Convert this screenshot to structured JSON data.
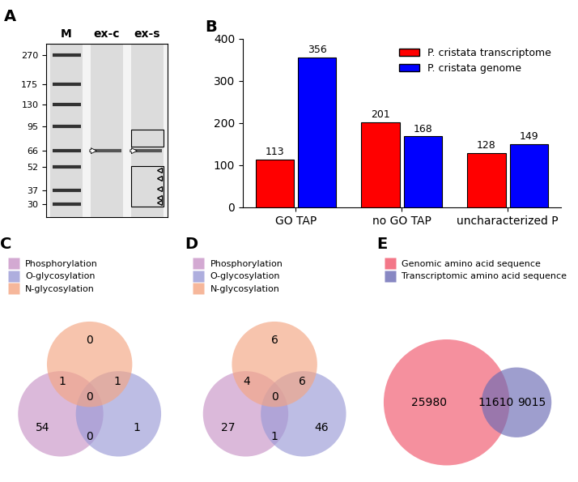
{
  "chart_data": [
    {
      "type": "gel",
      "title": "A",
      "categories": [
        "M",
        "ex-c",
        "ex-s"
      ],
      "log": "y",
      "ylim": [
        25,
        320
      ],
      "yticks": [
        270,
        175,
        130,
        95,
        66,
        52,
        37,
        30
      ],
      "bands": [
        {
          "lane": "ex-c",
          "kda": 66
        },
        {
          "lane": "ex-s",
          "kda": 66
        }
      ],
      "boxes": [
        {
          "lane": "ex-s",
          "kda": [
            70,
            90
          ]
        },
        {
          "lane": "ex-s",
          "kda": [
            29,
            53
          ]
        }
      ],
      "arrowheads": [
        {
          "lane": "ex-s",
          "kda": [
            50,
            44,
            38,
            33,
            31
          ]
        }
      ]
    },
    {
      "type": "bar",
      "title": "B",
      "categories": [
        "GO TAP",
        "no GO TAP",
        "uncharacterized P"
      ],
      "series": [
        {
          "name": "P. cristata transcriptome",
          "color": "#ff0000",
          "values": [
            113,
            201,
            128
          ]
        },
        {
          "name": "P. cristata genome",
          "color": "#0000ff",
          "values": [
            356,
            168,
            149
          ]
        }
      ],
      "ylim": [
        0,
        400
      ],
      "yticks": [
        0,
        100,
        200,
        300,
        400
      ],
      "data_labels": true,
      "legend": "upper right"
    },
    {
      "type": "venn",
      "title": "C",
      "sets": [
        {
          "name": "Phosphorylation",
          "color": "#c994c7"
        },
        {
          "name": "O-glycosylation",
          "color": "#9a9ad6"
        },
        {
          "name": "N-glycosylation",
          "color": "#f4a582"
        }
      ],
      "regions": [
        {
          "sets": [
            "Phosphorylation"
          ],
          "value": 54
        },
        {
          "sets": [
            "O-glycosylation"
          ],
          "value": 1
        },
        {
          "sets": [
            "N-glycosylation"
          ],
          "value": 0
        },
        {
          "sets": [
            "Phosphorylation",
            "N-glycosylation"
          ],
          "value": 1
        },
        {
          "sets": [
            "O-glycosylation",
            "N-glycosylation"
          ],
          "value": 1
        },
        {
          "sets": [
            "Phosphorylation",
            "O-glycosylation"
          ],
          "value": 0
        },
        {
          "sets": [
            "Phosphorylation",
            "O-glycosylation",
            "N-glycosylation"
          ],
          "value": 0
        }
      ],
      "legend": "upper left"
    },
    {
      "type": "venn",
      "title": "D",
      "sets": [
        {
          "name": "Phosphorylation",
          "color": "#c994c7"
        },
        {
          "name": "O-glycosylation",
          "color": "#9a9ad6"
        },
        {
          "name": "N-glycosylation",
          "color": "#f4a582"
        }
      ],
      "regions": [
        {
          "sets": [
            "Phosphorylation"
          ],
          "value": 27
        },
        {
          "sets": [
            "O-glycosylation"
          ],
          "value": 46
        },
        {
          "sets": [
            "N-glycosylation"
          ],
          "value": 6
        },
        {
          "sets": [
            "Phosphorylation",
            "N-glycosylation"
          ],
          "value": 4
        },
        {
          "sets": [
            "O-glycosylation",
            "N-glycosylation"
          ],
          "value": 6
        },
        {
          "sets": [
            "Phosphorylation",
            "O-glycosylation"
          ],
          "value": 1
        },
        {
          "sets": [
            "Phosphorylation",
            "O-glycosylation",
            "N-glycosylation"
          ],
          "value": 0
        }
      ],
      "legend": "upper left"
    },
    {
      "type": "venn",
      "title": "E",
      "sets": [
        {
          "name": "Genomic amino acid sequence",
          "color": "#f0556a"
        },
        {
          "name": "Transcriptomic amino acid sequence",
          "color": "#6a6ab4"
        }
      ],
      "regions": [
        {
          "sets": [
            "Genomic amino acid sequence"
          ],
          "value": 25980
        },
        {
          "sets": [
            "Genomic amino acid sequence",
            "Transcriptomic amino acid sequence"
          ],
          "value": 11610
        },
        {
          "sets": [
            "Transcriptomic amino acid sequence"
          ],
          "value": 9015
        }
      ],
      "legend": "upper left"
    }
  ]
}
